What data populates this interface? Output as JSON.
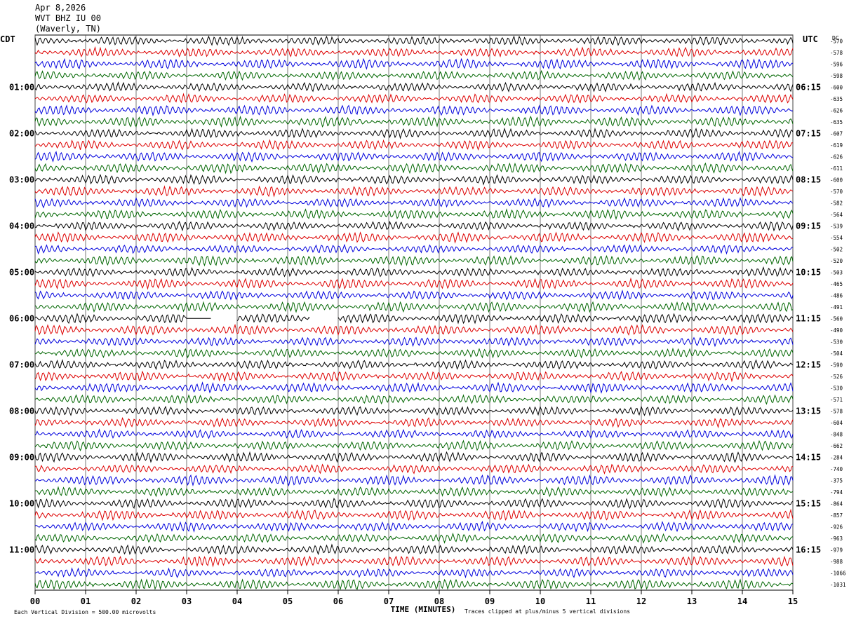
{
  "header": {
    "date": "Apr 8,2026",
    "station": "WVT BHZ IU 00",
    "location": "(Waverly, TN)"
  },
  "left_tz": "CDT",
  "right_tz": "UTC",
  "dc_label": "DC",
  "footer": {
    "scale": "Each Vertical Division =  500.00 microvolts",
    "clip": "Traces clipped at plus/minus 5 vertical divisions",
    "xlabel": "TIME (MINUTES)"
  },
  "chart_data": {
    "type": "line",
    "title": "Apr 8,2026 WVT BHZ IU 00 (Waverly, TN)",
    "xlabel": "TIME (MINUTES)",
    "xlim": [
      0,
      15
    ],
    "x_ticks": [
      "00",
      "01",
      "02",
      "03",
      "04",
      "05",
      "06",
      "07",
      "08",
      "09",
      "10",
      "11",
      "12",
      "13",
      "14",
      "15"
    ],
    "grid": "vertical lines each minute",
    "trace_colors": [
      "#000000",
      "#dd0000",
      "#0000dd",
      "#006600"
    ],
    "left_labels": [
      "01:00",
      "02:00",
      "03:00",
      "04:00",
      "05:00",
      "06:00",
      "07:00",
      "08:00",
      "09:00",
      "10:00",
      "11:00"
    ],
    "right_labels": [
      "06:15",
      "07:15",
      "08:15",
      "09:15",
      "10:15",
      "11:15",
      "12:15",
      "13:15",
      "14:15",
      "15:15",
      "16:15"
    ],
    "dc_values": [
      "-570",
      "-578",
      "-596",
      "-598",
      "-600",
      "-635",
      "-626",
      "-635",
      "-607",
      "-619",
      "-626",
      "-611",
      "-600",
      "-570",
      "-582",
      "-564",
      "-539",
      "-554",
      "-502",
      "-520",
      "-503",
      "-465",
      "-486",
      "-491",
      "-560",
      "-490",
      "-530",
      "-504",
      "-590",
      "-526",
      "-530",
      "-571",
      "-578",
      "-604",
      "-848",
      "-662",
      "-284",
      "-740",
      "-375",
      "-794",
      "-864",
      "-857",
      "-926",
      "-963",
      "-979",
      "-988",
      "-1066",
      "-1031"
    ],
    "gaps": [
      {
        "row": 24,
        "from_min": 3.0,
        "to_min": 3.5,
        "type": "flat"
      },
      {
        "row": 24,
        "from_min": 3.5,
        "to_min": 4.0,
        "type": "missing"
      },
      {
        "row": 24,
        "from_min": 5.45,
        "to_min": 6.0,
        "type": "missing"
      }
    ]
  }
}
